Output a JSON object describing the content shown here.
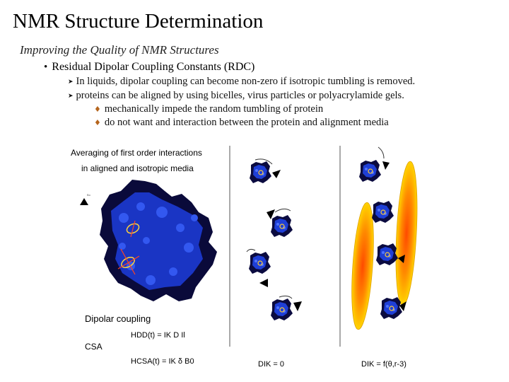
{
  "slide": {
    "title": "NMR Structure Determination",
    "subtitle": "Improving the Quality of NMR Structures",
    "bullet": "Residual Dipolar Coupling Constants (RDC)",
    "sub_points": [
      "In liquids, dipolar coupling can become non-zero if isotropic tumbling is removed.",
      "proteins can be aligned by using bicelles, virus particles or polyacrylamide gels."
    ],
    "sub_sub_points": [
      "mechanically impede the random tumbling of protein",
      "do not want and interaction between the protein and alignment media"
    ]
  },
  "figure": {
    "heading_line1": "Averaging of first order interactions",
    "heading_line2": "in aligned and isotropic media",
    "dipolar_label": "Dipolar coupling",
    "hdd_eq": "HDD(t) = IK D Il",
    "csa_label": "CSA",
    "hcsa_eq": "HCSA(t) = IK δ B0",
    "dik_iso": "DIK = 0",
    "dik_aligned": "DIK = f(θ,r-3)",
    "colors": {
      "protein_dark": "#0a0a3a",
      "protein_blue": "#1f3fd6",
      "bicelle_outer": "#ffd000",
      "bicelle_inner": "#ff5a00"
    }
  }
}
